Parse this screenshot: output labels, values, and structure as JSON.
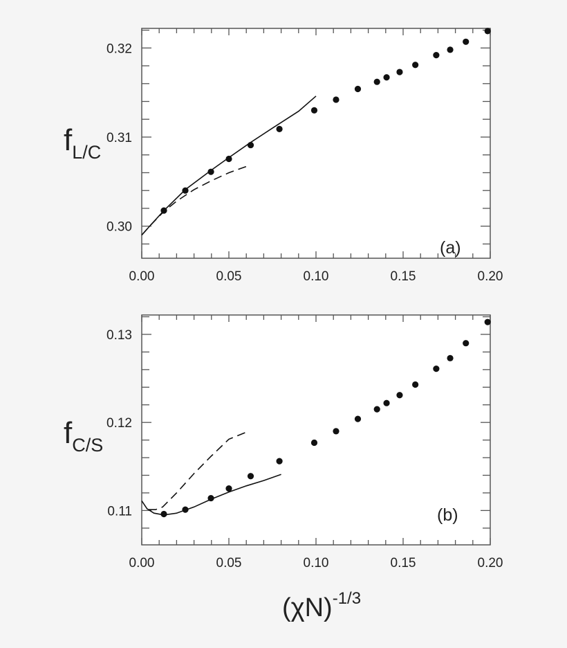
{
  "chart_data": [
    {
      "type": "scatter",
      "panel": "(a)",
      "title": "",
      "xlabel": "(χN)^-1/3",
      "ylabel": "f_L/C",
      "xlim": [
        0.0,
        0.2
      ],
      "ylim": [
        0.2964,
        0.3222
      ],
      "x_ticks": [
        "0.00",
        "0.05",
        "0.10",
        "0.15",
        "0.20"
      ],
      "y_ticks": [
        "0.30",
        "0.31",
        "0.32"
      ],
      "grid": false,
      "series": [
        {
          "name": "data points",
          "style": "filled-circle",
          "x": [
            0.0127,
            0.025,
            0.0397,
            0.05,
            0.0625,
            0.079,
            0.099,
            0.1115,
            0.124,
            0.135,
            0.1405,
            0.148,
            0.157,
            0.169,
            0.177,
            0.186,
            0.1985
          ],
          "y": [
            0.30175,
            0.304,
            0.3061,
            0.30755,
            0.3091,
            0.3109,
            0.313,
            0.3142,
            0.3154,
            0.3162,
            0.3167,
            0.3173,
            0.3181,
            0.3192,
            0.3198,
            0.3207,
            0.3219
          ]
        },
        {
          "name": "solid curve",
          "style": "solid",
          "x": [
            0.0,
            0.005,
            0.0127,
            0.025,
            0.04,
            0.05,
            0.0625,
            0.075,
            0.09,
            0.1
          ],
          "y": [
            0.299,
            0.3001,
            0.30175,
            0.3041,
            0.3063,
            0.3077,
            0.3094,
            0.311,
            0.3129,
            0.3146
          ]
        },
        {
          "name": "dashed curve",
          "style": "dashed",
          "x": [
            0.0,
            0.005,
            0.0127,
            0.02,
            0.03,
            0.04,
            0.05,
            0.06
          ],
          "y": [
            0.299,
            0.3001,
            0.30165,
            0.3028,
            0.3041,
            0.3051,
            0.306,
            0.3067
          ]
        }
      ],
      "annotations": [
        "(a)"
      ]
    },
    {
      "type": "scatter",
      "panel": "(b)",
      "title": "",
      "xlabel": "(χN)^-1/3",
      "ylabel": "f_C/S",
      "xlim": [
        0.0,
        0.2
      ],
      "ylim": [
        0.1061,
        0.1322
      ],
      "x_ticks": [
        "0.00",
        "0.05",
        "0.10",
        "0.15",
        "0.20"
      ],
      "y_ticks": [
        "0.11",
        "0.12",
        "0.13"
      ],
      "grid": false,
      "series": [
        {
          "name": "data points",
          "style": "filled-circle",
          "x": [
            0.0127,
            0.025,
            0.0397,
            0.05,
            0.0625,
            0.079,
            0.099,
            0.1115,
            0.124,
            0.135,
            0.1405,
            0.148,
            0.157,
            0.169,
            0.177,
            0.186,
            0.1985
          ],
          "y": [
            0.1096,
            0.1101,
            0.1114,
            0.1125,
            0.1139,
            0.1156,
            0.1177,
            0.119,
            0.1204,
            0.1215,
            0.1222,
            0.1231,
            0.1243,
            0.1261,
            0.1273,
            0.129,
            0.1314
          ]
        },
        {
          "name": "solid curve",
          "style": "solid",
          "x": [
            0.0,
            0.003,
            0.007,
            0.0127,
            0.02,
            0.03,
            0.04,
            0.05,
            0.06,
            0.07,
            0.08
          ],
          "y": [
            0.1111,
            0.1102,
            0.1097,
            0.1095,
            0.1097,
            0.1104,
            0.1113,
            0.1121,
            0.1128,
            0.1134,
            0.1141
          ]
        },
        {
          "name": "dashed curve",
          "style": "dashed",
          "x": [
            0.004,
            0.008,
            0.012,
            0.02,
            0.03,
            0.04,
            0.05,
            0.06
          ],
          "y": [
            0.1101,
            0.1101,
            0.1104,
            0.112,
            0.1142,
            0.1162,
            0.1181,
            0.1189
          ]
        }
      ],
      "annotations": [
        "(b)"
      ]
    }
  ],
  "labels": {
    "panel_a": {
      "ylabel_main": "f",
      "ylabel_sub": "L/C",
      "tag": "(a)",
      "x_ticks": [
        "0.00",
        "0.05",
        "0.10",
        "0.15",
        "0.20"
      ],
      "y_ticks": [
        "0.30",
        "0.31",
        "0.32"
      ]
    },
    "panel_b": {
      "ylabel_main": "f",
      "ylabel_sub": "C/S",
      "tag": "(b)",
      "x_ticks": [
        "0.00",
        "0.05",
        "0.10",
        "0.15",
        "0.20"
      ],
      "y_ticks": [
        "0.11",
        "0.12",
        "0.13"
      ]
    },
    "xlabel_main": "(χN)",
    "xlabel_sup": "-1/3"
  }
}
